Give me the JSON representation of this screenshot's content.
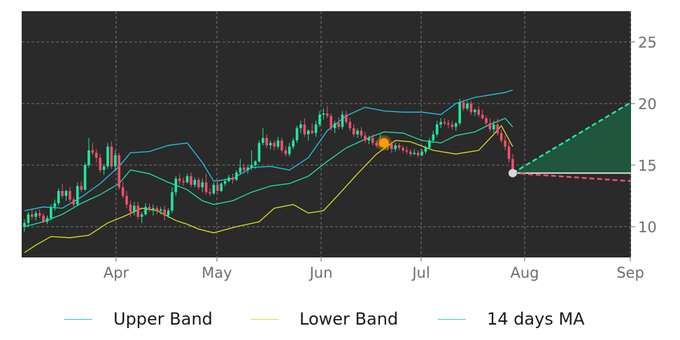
{
  "chart_data": {
    "type": "candlestick",
    "background": "#2a2a2a",
    "grid": true,
    "x_ticks": [
      "Apr",
      "May",
      "Jun",
      "Jul",
      "Aug",
      "Sep"
    ],
    "y_ticks": [
      10,
      15,
      20,
      25
    ],
    "ylim": [
      7.5,
      27.5
    ],
    "legend": {
      "position": "bottom",
      "items": [
        {
          "label": "Upper Band",
          "color": "#1ec8e8"
        },
        {
          "label": "Lower Band",
          "color": "#e0e020"
        },
        {
          "label": "14 days MA",
          "color": "#1ee8a0"
        }
      ]
    },
    "colors": {
      "up": "#1ee8a0",
      "down": "#f0506e",
      "upper_band": "#1ec8e8",
      "lower_band": "#e0e020",
      "ma": "#1ee8a0",
      "marker": "#ff9900",
      "last_point": "#d8d8d8",
      "forecast_up": "#1ee8a0",
      "forecast_down": "#f0506e",
      "forecast_fill": "#1f5a40"
    },
    "series": [
      {
        "name": "Upper Band",
        "points": [
          [
            0,
            11.3
          ],
          [
            5,
            11.6
          ],
          [
            10,
            11.5
          ],
          [
            15,
            12.4
          ],
          [
            20,
            13.5
          ],
          [
            25,
            14.9
          ],
          [
            28,
            16.0
          ],
          [
            33,
            16.1
          ],
          [
            38,
            16.6
          ],
          [
            43,
            16.8
          ],
          [
            47,
            15.2
          ],
          [
            50,
            13.7
          ],
          [
            55,
            13.9
          ],
          [
            60,
            14.8
          ],
          [
            65,
            14.9
          ],
          [
            70,
            14.6
          ],
          [
            75,
            15.6
          ],
          [
            80,
            17.8
          ],
          [
            85,
            19.0
          ],
          [
            90,
            19.7
          ],
          [
            95,
            19.4
          ],
          [
            100,
            19.3
          ],
          [
            105,
            19.3
          ],
          [
            110,
            19.1
          ],
          [
            114,
            20.0
          ],
          [
            119,
            20.5
          ],
          [
            123,
            20.7
          ],
          [
            127,
            20.9
          ],
          [
            129,
            21.1
          ]
        ]
      },
      {
        "name": "Lower Band",
        "points": [
          [
            0,
            7.9
          ],
          [
            3,
            8.5
          ],
          [
            7,
            9.2
          ],
          [
            12,
            9.1
          ],
          [
            17,
            9.3
          ],
          [
            22,
            10.3
          ],
          [
            26,
            10.8
          ],
          [
            31,
            11.5
          ],
          [
            35,
            11.3
          ],
          [
            40,
            10.5
          ],
          [
            43,
            10.2
          ],
          [
            46,
            9.8
          ],
          [
            50,
            9.5
          ],
          [
            56,
            10.0
          ],
          [
            62,
            10.4
          ],
          [
            66,
            11.5
          ],
          [
            71,
            11.8
          ],
          [
            75,
            11.1
          ],
          [
            79,
            11.3
          ],
          [
            83,
            12.6
          ],
          [
            88,
            14.3
          ],
          [
            93,
            15.9
          ],
          [
            98,
            17.0
          ],
          [
            102,
            16.9
          ],
          [
            108,
            16.2
          ],
          [
            114,
            15.9
          ],
          [
            120,
            16.2
          ],
          [
            124,
            17.5
          ],
          [
            126,
            18.2
          ],
          [
            129,
            16.5
          ]
        ]
      },
      {
        "name": "14 days MA",
        "points": [
          [
            0,
            10.0
          ],
          [
            5,
            10.4
          ],
          [
            10,
            11.0
          ],
          [
            15,
            11.9
          ],
          [
            20,
            12.6
          ],
          [
            25,
            13.5
          ],
          [
            28,
            14.6
          ],
          [
            33,
            14.3
          ],
          [
            38,
            13.6
          ],
          [
            43,
            13.0
          ],
          [
            47,
            12.1
          ],
          [
            50,
            11.8
          ],
          [
            55,
            12.1
          ],
          [
            60,
            12.8
          ],
          [
            65,
            13.3
          ],
          [
            70,
            13.5
          ],
          [
            75,
            14.1
          ],
          [
            80,
            15.3
          ],
          [
            85,
            16.4
          ],
          [
            90,
            17.1
          ],
          [
            95,
            17.7
          ],
          [
            100,
            17.6
          ],
          [
            105,
            17.0
          ],
          [
            110,
            16.8
          ],
          [
            114,
            17.4
          ],
          [
            119,
            17.7
          ],
          [
            123,
            18.3
          ],
          [
            127,
            18.8
          ],
          [
            129,
            18.1
          ]
        ]
      }
    ],
    "ohlc": [
      [
        0,
        10.0,
        10.6,
        9.6,
        10.3
      ],
      [
        1,
        10.3,
        11.2,
        10.1,
        11.0
      ],
      [
        2,
        11.0,
        11.4,
        10.6,
        10.8
      ],
      [
        3,
        10.8,
        11.3,
        10.5,
        11.1
      ],
      [
        4,
        11.1,
        11.4,
        10.7,
        10.9
      ],
      [
        5,
        10.9,
        11.1,
        10.3,
        10.4
      ],
      [
        6,
        10.4,
        10.9,
        10.2,
        10.7
      ],
      [
        7,
        10.7,
        11.8,
        10.5,
        11.6
      ],
      [
        8,
        11.6,
        12.2,
        11.3,
        11.9
      ],
      [
        9,
        11.9,
        13.1,
        11.7,
        12.9
      ],
      [
        10,
        12.9,
        13.5,
        12.3,
        12.5
      ],
      [
        11,
        12.5,
        13.0,
        12.1,
        12.9
      ],
      [
        12,
        12.9,
        13.2,
        12.0,
        12.2
      ],
      [
        13,
        12.2,
        12.4,
        11.6,
        11.8
      ],
      [
        14,
        11.8,
        13.6,
        11.7,
        13.3
      ],
      [
        15,
        13.3,
        13.7,
        12.8,
        13.0
      ],
      [
        16,
        13.0,
        15.2,
        12.9,
        15.0
      ],
      [
        17,
        15.0,
        17.2,
        14.8,
        16.2
      ],
      [
        18,
        16.2,
        16.8,
        15.8,
        16.0
      ],
      [
        19,
        16.0,
        16.3,
        15.2,
        15.6
      ],
      [
        20,
        15.6,
        15.9,
        14.4,
        14.6
      ],
      [
        21,
        14.6,
        15.1,
        14.2,
        14.9
      ],
      [
        22,
        14.9,
        16.8,
        14.7,
        16.5
      ],
      [
        23,
        16.5,
        16.9,
        14.7,
        14.9
      ],
      [
        24,
        14.9,
        16.2,
        14.5,
        15.8
      ],
      [
        25,
        15.8,
        16.0,
        13.0,
        13.2
      ],
      [
        26,
        13.2,
        13.6,
        12.3,
        12.5
      ],
      [
        27,
        12.5,
        12.9,
        11.5,
        11.8
      ],
      [
        28,
        11.8,
        12.1,
        10.8,
        11.2
      ],
      [
        29,
        11.2,
        12.0,
        10.9,
        11.7
      ],
      [
        30,
        11.7,
        12.0,
        10.6,
        10.8
      ],
      [
        31,
        10.8,
        11.2,
        10.3,
        11.0
      ],
      [
        32,
        11.0,
        11.9,
        10.9,
        11.6
      ],
      [
        33,
        11.6,
        11.9,
        11.2,
        11.4
      ],
      [
        34,
        11.4,
        11.8,
        10.9,
        11.5
      ],
      [
        35,
        11.5,
        11.7,
        11.0,
        11.3
      ],
      [
        36,
        11.3,
        11.6,
        11.0,
        11.4
      ],
      [
        37,
        11.4,
        11.7,
        10.5,
        10.9
      ],
      [
        38,
        10.9,
        11.5,
        10.7,
        11.3
      ],
      [
        39,
        11.3,
        13.2,
        11.1,
        12.8
      ],
      [
        40,
        12.8,
        14.1,
        12.5,
        13.9
      ],
      [
        41,
        13.9,
        14.3,
        13.4,
        13.7
      ],
      [
        42,
        13.7,
        14.0,
        13.3,
        13.6
      ],
      [
        43,
        13.6,
        14.3,
        13.5,
        14.1
      ],
      [
        44,
        14.1,
        14.4,
        13.2,
        13.4
      ],
      [
        45,
        13.4,
        14.0,
        13.2,
        13.8
      ],
      [
        46,
        13.8,
        14.0,
        13.0,
        13.2
      ],
      [
        47,
        13.2,
        13.9,
        12.8,
        13.6
      ],
      [
        48,
        13.6,
        14.3,
        12.6,
        12.8
      ],
      [
        49,
        12.8,
        13.1,
        12.5,
        12.7
      ],
      [
        50,
        12.7,
        13.6,
        12.6,
        13.4
      ],
      [
        51,
        13.4,
        13.7,
        12.7,
        12.9
      ],
      [
        52,
        12.9,
        13.6,
        12.8,
        13.5
      ],
      [
        53,
        13.5,
        13.9,
        13.3,
        13.7
      ],
      [
        54,
        13.7,
        14.2,
        13.6,
        14.0
      ],
      [
        55,
        14.0,
        14.3,
        13.5,
        13.8
      ],
      [
        56,
        13.8,
        14.6,
        13.7,
        14.4
      ],
      [
        57,
        14.4,
        15.5,
        14.2,
        14.8
      ],
      [
        58,
        14.8,
        15.1,
        14.3,
        14.6
      ],
      [
        59,
        14.6,
        15.0,
        14.3,
        14.8
      ],
      [
        60,
        14.8,
        16.2,
        14.6,
        15.0
      ],
      [
        61,
        15.0,
        15.4,
        14.7,
        15.3
      ],
      [
        62,
        15.3,
        17.0,
        15.2,
        16.8
      ],
      [
        63,
        16.8,
        18.0,
        16.6,
        17.2
      ],
      [
        64,
        17.2,
        17.5,
        16.4,
        16.6
      ],
      [
        65,
        16.6,
        17.0,
        16.3,
        16.8
      ],
      [
        66,
        16.8,
        17.0,
        16.2,
        16.5
      ],
      [
        67,
        16.5,
        17.3,
        16.3,
        17.0
      ],
      [
        68,
        17.0,
        17.2,
        16.0,
        16.2
      ],
      [
        69,
        16.2,
        16.5,
        15.7,
        15.9
      ],
      [
        70,
        15.9,
        16.8,
        15.7,
        16.5
      ],
      [
        71,
        16.5,
        17.2,
        16.3,
        17.0
      ],
      [
        72,
        17.0,
        18.2,
        16.8,
        18.0
      ],
      [
        73,
        18.0,
        18.6,
        17.6,
        18.3
      ],
      [
        74,
        18.3,
        18.8,
        17.3,
        17.5
      ],
      [
        75,
        17.5,
        17.9,
        17.0,
        17.8
      ],
      [
        76,
        17.8,
        18.4,
        17.5,
        17.6
      ],
      [
        77,
        17.6,
        18.6,
        17.3,
        18.3
      ],
      [
        78,
        18.3,
        19.4,
        18.1,
        19.1
      ],
      [
        79,
        19.1,
        19.6,
        18.7,
        19.2
      ],
      [
        80,
        19.2,
        19.8,
        18.8,
        19.0
      ],
      [
        81,
        19.0,
        19.2,
        17.8,
        18.0
      ],
      [
        82,
        18.0,
        18.6,
        17.6,
        18.4
      ],
      [
        83,
        18.4,
        18.9,
        17.9,
        18.1
      ],
      [
        84,
        18.1,
        19.4,
        17.9,
        19.1
      ],
      [
        85,
        19.1,
        19.4,
        18.3,
        18.5
      ],
      [
        86,
        18.5,
        18.8,
        17.8,
        18.0
      ],
      [
        87,
        18.0,
        18.3,
        17.3,
        17.5
      ],
      [
        88,
        17.5,
        18.0,
        17.2,
        17.8
      ],
      [
        89,
        17.8,
        18.1,
        17.2,
        17.4
      ],
      [
        90,
        17.4,
        17.7,
        16.8,
        17.0
      ],
      [
        91,
        17.0,
        17.4,
        16.7,
        17.2
      ],
      [
        92,
        17.2,
        17.5,
        16.6,
        16.8
      ],
      [
        93,
        16.8,
        17.0,
        16.4,
        16.6
      ],
      [
        94,
        16.6,
        17.5,
        16.5,
        17.0
      ],
      [
        95,
        17.0,
        17.2,
        16.4,
        16.6
      ],
      [
        96,
        16.6,
        17.0,
        16.2,
        16.7
      ],
      [
        97,
        16.7,
        16.9,
        16.0,
        16.3
      ],
      [
        98,
        16.3,
        16.8,
        16.1,
        16.6
      ],
      [
        99,
        16.6,
        16.8,
        16.2,
        16.4
      ],
      [
        100,
        16.4,
        16.6,
        16.0,
        16.2
      ],
      [
        101,
        16.2,
        16.5,
        15.9,
        16.1
      ],
      [
        102,
        16.1,
        16.3,
        15.7,
        15.9
      ],
      [
        103,
        15.9,
        16.3,
        15.8,
        16.0
      ],
      [
        104,
        16.0,
        16.2,
        15.6,
        15.8
      ],
      [
        105,
        15.8,
        16.3,
        15.7,
        16.1
      ],
      [
        106,
        16.1,
        16.6,
        15.9,
        16.4
      ],
      [
        107,
        16.4,
        17.2,
        16.3,
        17.0
      ],
      [
        108,
        17.0,
        17.8,
        16.8,
        17.5
      ],
      [
        109,
        17.5,
        18.6,
        17.3,
        18.3
      ],
      [
        110,
        18.3,
        18.8,
        18.0,
        18.5
      ],
      [
        111,
        18.5,
        18.8,
        18.2,
        18.4
      ],
      [
        112,
        18.4,
        18.7,
        18.0,
        18.3
      ],
      [
        113,
        18.3,
        18.6,
        17.9,
        18.1
      ],
      [
        114,
        18.1,
        18.5,
        17.8,
        18.4
      ],
      [
        115,
        18.4,
        20.4,
        18.2,
        20.1
      ],
      [
        116,
        20.1,
        20.3,
        19.4,
        19.6
      ],
      [
        117,
        19.6,
        20.2,
        19.4,
        20.0
      ],
      [
        118,
        20.0,
        20.2,
        19.1,
        19.3
      ],
      [
        119,
        19.3,
        19.6,
        19.0,
        19.5
      ],
      [
        120,
        19.5,
        19.8,
        18.9,
        19.1
      ],
      [
        121,
        19.1,
        19.5,
        18.7,
        18.8
      ],
      [
        122,
        18.8,
        19.0,
        18.2,
        18.4
      ],
      [
        123,
        18.4,
        18.8,
        17.7,
        17.9
      ],
      [
        124,
        17.9,
        18.6,
        17.6,
        18.3
      ],
      [
        125,
        18.3,
        18.8,
        17.4,
        17.6
      ],
      [
        126,
        17.6,
        17.9,
        16.8,
        17.0
      ],
      [
        127,
        17.0,
        17.4,
        16.2,
        16.5
      ],
      [
        128,
        16.5,
        16.9,
        15.2,
        15.5
      ],
      [
        129,
        15.5,
        15.9,
        14.3,
        14.5
      ]
    ],
    "highlight_point": {
      "date_index": 95,
      "value": 16.8
    },
    "last_point": {
      "date_index": 129,
      "value": 14.35
    },
    "forecast": {
      "start_value": 14.35,
      "horizon": "Sep",
      "upper_end": 20.1,
      "lower_end": 13.7,
      "baseline": 14.35
    }
  }
}
